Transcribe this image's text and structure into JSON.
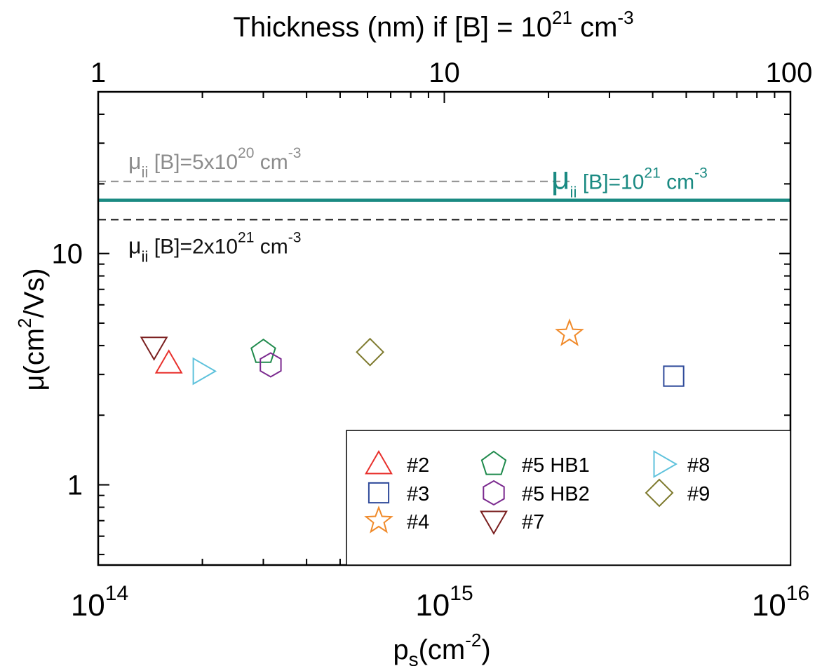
{
  "chart_data": {
    "type": "scatter",
    "title": "",
    "xlabel": {
      "base": "p",
      "sub": "s",
      "mid": "(cm",
      "sup": "-2",
      "end": ")"
    },
    "ylabel": {
      "base": "μ(cm",
      "sup": "2",
      "end": "/Vs)"
    },
    "top_axis_label": {
      "pre": "Thickness (nm)  if [B] = 10",
      "sup1": "21",
      "mid": " cm",
      "sup2": "-3"
    },
    "x_scale": "log",
    "y_scale": "log",
    "xlim": [
      100000000000000.0,
      1e+16
    ],
    "ylim": [
      0.45,
      50
    ],
    "top_axis_range_nm": [
      1,
      100
    ],
    "x_ticks": [
      {
        "value": 100000000000000.0,
        "base": "10",
        "exp": "14"
      },
      {
        "value": 1000000000000000.0,
        "base": "10",
        "exp": "15"
      },
      {
        "value": 1e+16,
        "base": "10",
        "exp": "16"
      }
    ],
    "top_ticks": [
      {
        "value": 1,
        "label": "1"
      },
      {
        "value": 10,
        "label": "10"
      },
      {
        "value": 100,
        "label": "100"
      }
    ],
    "y_ticks": [
      {
        "value": 1,
        "label": "1"
      },
      {
        "value": 10,
        "label": "10"
      }
    ],
    "grid": false,
    "legend_position": "bottom-right",
    "series": [
      {
        "name": "#2",
        "marker": "triangle-up",
        "color": "#e8302c",
        "x": 160000000000000.0,
        "y": 3.35
      },
      {
        "name": "#3",
        "marker": "square",
        "color": "#2f4a9a",
        "x": 4600000000000000.0,
        "y": 2.95
      },
      {
        "name": "#4",
        "marker": "star",
        "color": "#f08a2a",
        "x": 2300000000000000.0,
        "y": 4.5
      },
      {
        "name": "#5 HB1",
        "marker": "pentagon",
        "color": "#1f8a4c",
        "x": 300000000000000.0,
        "y": 3.75
      },
      {
        "name": "#5 HB2",
        "marker": "hexagon",
        "color": "#7b2a8f",
        "x": 315000000000000.0,
        "y": 3.3
      },
      {
        "name": "#7",
        "marker": "triangle-down",
        "color": "#7a1f1f",
        "x": 145000000000000.0,
        "y": 3.95
      },
      {
        "name": "#8",
        "marker": "triangle-right",
        "color": "#5ec2dc",
        "x": 195000000000000.0,
        "y": 3.1
      },
      {
        "name": "#9",
        "marker": "diamond",
        "color": "#7e7a2e",
        "x": 610000000000000.0,
        "y": 3.75
      }
    ],
    "reference_lines": [
      {
        "y": 20.5,
        "style": "dashed",
        "color": "#8c8c8c",
        "label_base": "μ",
        "label_sub": "ii",
        "label_mid": " [B]=5x10",
        "label_sup1": "20",
        "label_unit": " cm",
        "label_sup2": "-3"
      },
      {
        "y": 17.0,
        "style": "solid",
        "color": "#1a8a82",
        "label_base": "μ",
        "label_sub": "ii",
        "label_mid": " [B]=10",
        "label_sup1": "21",
        "label_unit": " cm",
        "label_sup2": "-3"
      },
      {
        "y": 14.0,
        "style": "dashed",
        "color": "#111111",
        "label_base": "μ",
        "label_sub": "ii",
        "label_mid": " [B]=2x10",
        "label_sup1": "21",
        "label_unit": " cm",
        "label_sup2": "-3"
      }
    ]
  }
}
